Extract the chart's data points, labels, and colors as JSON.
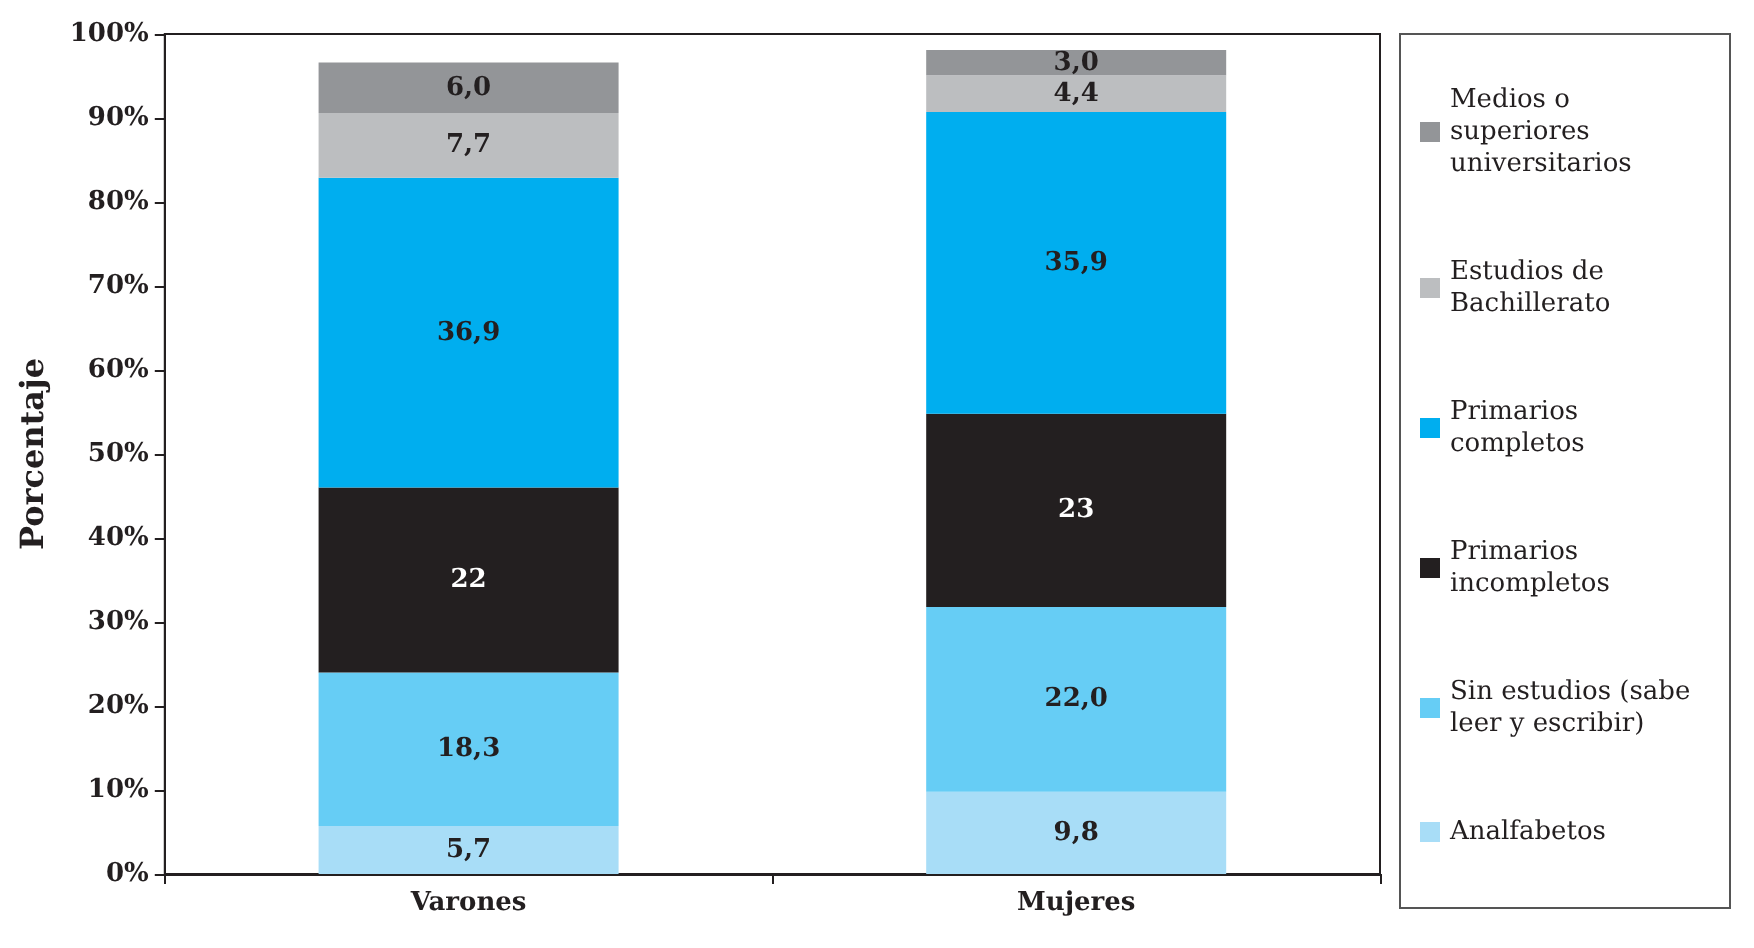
{
  "chart_data": {
    "type": "bar",
    "stacked": true,
    "ylabel": "Porcentaje",
    "categories": [
      "Varones",
      "Mujeres"
    ],
    "series": [
      {
        "name": "Analfabetos",
        "color": "#a8ddf7",
        "values": [
          5.7,
          9.8
        ],
        "value_labels": [
          "5,7",
          "9,8"
        ]
      },
      {
        "name": "Sin estudios (sabe leer y escribir)",
        "color": "#66cdf5",
        "values": [
          18.3,
          22.0
        ],
        "value_labels": [
          "18,3",
          "22,0"
        ]
      },
      {
        "name": "Primarios incompletos",
        "color": "#231f20",
        "values": [
          22,
          23
        ],
        "value_labels": [
          "22",
          "23"
        ]
      },
      {
        "name": "Primarios completos",
        "color": "#00aeef",
        "values": [
          36.9,
          35.9
        ],
        "value_labels": [
          "36,9",
          "35,9"
        ]
      },
      {
        "name": "Estudios de Bachillerato",
        "color": "#bcbec0",
        "values": [
          7.7,
          4.4
        ],
        "value_labels": [
          "7,7",
          "4,4"
        ]
      },
      {
        "name": "Medios o superiores universitarios",
        "color": "#939598",
        "values": [
          6.0,
          3.0
        ],
        "value_labels": [
          "6,0",
          "3,0"
        ]
      }
    ],
    "ylim": [
      0,
      100
    ],
    "yticks": [
      {
        "value": 0,
        "label": "0%"
      },
      {
        "value": 10,
        "label": "10%"
      },
      {
        "value": 20,
        "label": "20%"
      },
      {
        "value": 30,
        "label": "30%"
      },
      {
        "value": 40,
        "label": "40%"
      },
      {
        "value": 50,
        "label": "50%"
      },
      {
        "value": 60,
        "label": "60%"
      },
      {
        "value": 70,
        "label": "70%"
      },
      {
        "value": 80,
        "label": "80%"
      },
      {
        "value": 90,
        "label": "90%"
      },
      {
        "value": 100,
        "label": "100%"
      }
    ],
    "grid": false,
    "legend": "right"
  }
}
